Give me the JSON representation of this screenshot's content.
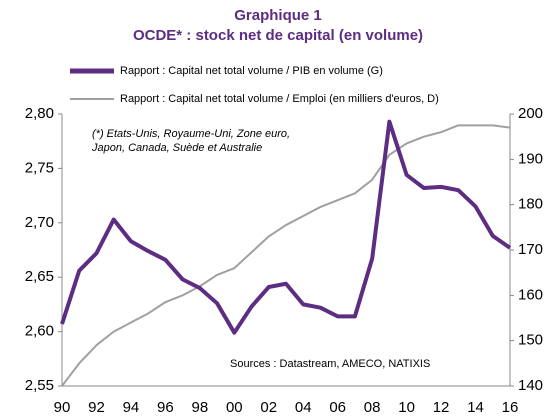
{
  "chart_data": {
    "type": "line",
    "title": "Graphique 1",
    "subtitle": "OCDE* : stock net de capital (en volume)",
    "note": [
      "(*) Etats-Unis, Royaume-Uni, Zone euro,",
      "Japon, Canada, Suède et Australie"
    ],
    "source": "Sources : Datastream, AMECO, NATIXIS",
    "categories": [
      "90",
      null,
      "92",
      null,
      "94",
      null,
      "96",
      null,
      "98",
      null,
      "00",
      null,
      "02",
      null,
      "04",
      null,
      "06",
      null,
      "08",
      null,
      "10",
      null,
      "12",
      null,
      "14",
      null,
      "16"
    ],
    "series": [
      {
        "name": "Rapport : Capital net total volume / PIB en volume (G)",
        "color": "#5c2d82",
        "values": [
          2.607,
          2.656,
          2.672,
          2.703,
          2.683,
          2.674,
          2.666,
          2.648,
          2.64,
          2.626,
          2.599,
          2.623,
          2.641,
          2.644,
          2.625,
          2.622,
          2.614,
          2.614,
          2.667,
          2.793,
          2.744,
          2.732,
          2.733,
          2.73,
          2.715,
          2.688,
          2.677
        ]
      },
      {
        "name": "Rapport : Capital net total volume / Emploi (en milliers d'euros, D)",
        "color": "#a0a0a0",
        "axis": "y2",
        "values": [
          140,
          145,
          149,
          152,
          154,
          156,
          158.5,
          160,
          162,
          164.5,
          166,
          169.5,
          173,
          175.5,
          177.5,
          179.5,
          181,
          182.5,
          185.5,
          191,
          193.5,
          195,
          196,
          197.5,
          197.5,
          197.5,
          197
        ]
      }
    ],
    "ylim": [
      2.55,
      2.8
    ],
    "yticks": [
      {
        "value": 2.55,
        "label": "2,55"
      },
      {
        "value": 2.6,
        "label": "2,60"
      },
      {
        "value": 2.65,
        "label": "2,65"
      },
      {
        "value": 2.7,
        "label": "2,70"
      },
      {
        "value": 2.75,
        "label": "2,75"
      },
      {
        "value": 2.8,
        "label": "2,80"
      }
    ],
    "y2lim": [
      140,
      200
    ],
    "y2ticks": [
      140,
      150,
      160,
      170,
      180,
      190,
      200
    ],
    "grid": false
  }
}
